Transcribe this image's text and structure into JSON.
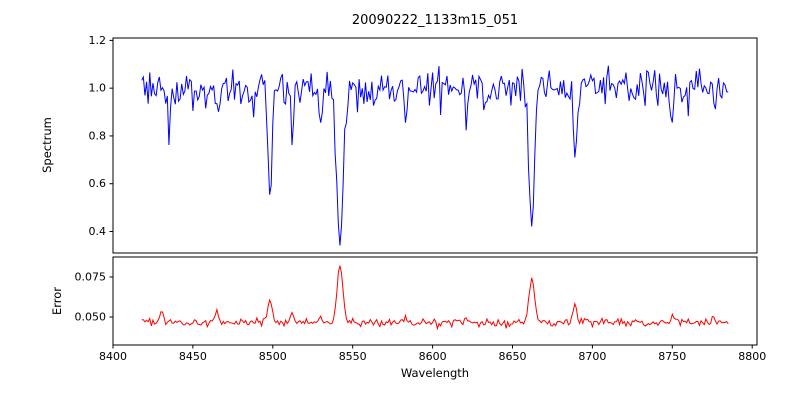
{
  "title": "20090222_1133m15_051",
  "xlabel": "Wavelength",
  "seed": 3,
  "axes": {
    "spine_color": "#000000",
    "background": "#ffffff",
    "xlim": [
      8400,
      8803
    ],
    "xticks": [
      8400,
      8450,
      8500,
      8550,
      8600,
      8650,
      8700,
      8750,
      8800
    ],
    "xtick_labels": [
      "8400",
      "8450",
      "8500",
      "8550",
      "8600",
      "8650",
      "8700",
      "8750",
      "8800"
    ]
  },
  "chart_data": [
    {
      "type": "line",
      "panel": "spectrum",
      "ylabel": "Spectrum",
      "color": "#0000ff",
      "ylim": [
        0.31,
        1.21
      ],
      "yticks": [
        0.4,
        0.6,
        0.8,
        1.0,
        1.2
      ],
      "ytick_labels": [
        "0.4",
        "0.6",
        "0.8",
        "1.0",
        "1.2"
      ],
      "x_start": 8418,
      "x_end": 8785,
      "x_step": 1,
      "continuum": 1.0,
      "noise_sigma": 0.042,
      "absorption_lines": [
        {
          "center": 8435,
          "depth": 0.12,
          "sigma": 0.9
        },
        {
          "center": 8465,
          "depth": 0.1,
          "sigma": 0.9
        },
        {
          "center": 8498,
          "depth": 0.45,
          "sigma": 1.2
        },
        {
          "center": 8512,
          "depth": 0.22,
          "sigma": 0.9
        },
        {
          "center": 8530,
          "depth": 0.15,
          "sigma": 0.9
        },
        {
          "center": 8542,
          "depth": 0.66,
          "sigma": 2.0
        },
        {
          "center": 8583,
          "depth": 0.1,
          "sigma": 0.9
        },
        {
          "center": 8621,
          "depth": 0.1,
          "sigma": 0.9
        },
        {
          "center": 8662,
          "depth": 0.59,
          "sigma": 1.6
        },
        {
          "center": 8689,
          "depth": 0.3,
          "sigma": 0.9
        },
        {
          "center": 8750,
          "depth": 0.12,
          "sigma": 0.9
        }
      ]
    },
    {
      "type": "line",
      "panel": "error",
      "ylabel": "Error",
      "color": "#ff0000",
      "ylim": [
        0.0325,
        0.0875
      ],
      "yticks": [
        0.05,
        0.075
      ],
      "ytick_labels": [
        "0.050",
        "0.075"
      ],
      "x_start": 8418,
      "x_end": 8785,
      "x_step": 1,
      "baseline": 0.0465,
      "noise_sigma": 0.0012,
      "peaks": [
        {
          "center": 8430,
          "height": 0.006,
          "sigma": 1.2
        },
        {
          "center": 8465,
          "height": 0.0065,
          "sigma": 1.2
        },
        {
          "center": 8498,
          "height": 0.014,
          "sigma": 1.5
        },
        {
          "center": 8512,
          "height": 0.005,
          "sigma": 1.0
        },
        {
          "center": 8530,
          "height": 0.004,
          "sigma": 1.0
        },
        {
          "center": 8542,
          "height": 0.036,
          "sigma": 1.8
        },
        {
          "center": 8583,
          "height": 0.004,
          "sigma": 1.0
        },
        {
          "center": 8621,
          "height": 0.003,
          "sigma": 1.0
        },
        {
          "center": 8662,
          "height": 0.029,
          "sigma": 1.6
        },
        {
          "center": 8689,
          "height": 0.011,
          "sigma": 1.2
        },
        {
          "center": 8750,
          "height": 0.0045,
          "sigma": 1.0
        },
        {
          "center": 8776,
          "height": 0.004,
          "sigma": 1.0
        }
      ]
    }
  ]
}
